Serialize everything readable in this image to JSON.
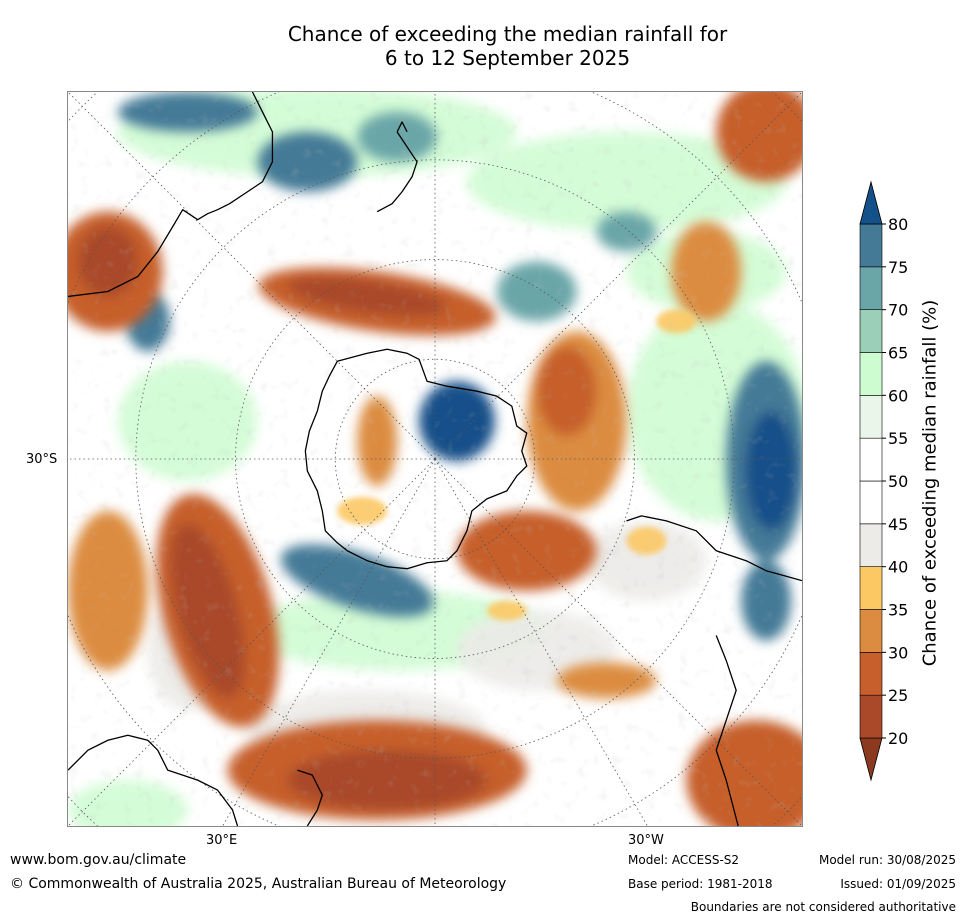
{
  "title": {
    "line1": "Chance of exceeding the median rainfall for",
    "line2": "6 to 12 September 2025"
  },
  "map_labels": {
    "lat": "30°S",
    "lon_east": "30°E",
    "lon_west": "30°W"
  },
  "colorbar": {
    "title": "Chance of exceeding median rainfall (%)",
    "ticks": [
      "20",
      "25",
      "30",
      "35",
      "40",
      "45",
      "50",
      "55",
      "60",
      "65",
      "70",
      "75",
      "80"
    ],
    "colors": [
      "#8b3a1f",
      "#a9492a",
      "#c65f2c",
      "#dc8c40",
      "#fcc864",
      "#ecebe8",
      "#ffffff",
      "#ffffff",
      "#eaf6ea",
      "#cdfcd0",
      "#9ccfb8",
      "#6aa6a8",
      "#457a97",
      "#145089"
    ]
  },
  "footer": {
    "site": "www.bom.gov.au/climate",
    "copyright": "© Commonwealth of Australia 2025, Australian Bureau of Meteorology",
    "model": "Model: ACCESS-S2",
    "base_period": "Base period: 1981-2018",
    "model_run": "Model run: 30/08/2025",
    "issued": "Issued: 01/09/2025",
    "disclaimer": "Boundaries are not considered authoritative"
  }
}
